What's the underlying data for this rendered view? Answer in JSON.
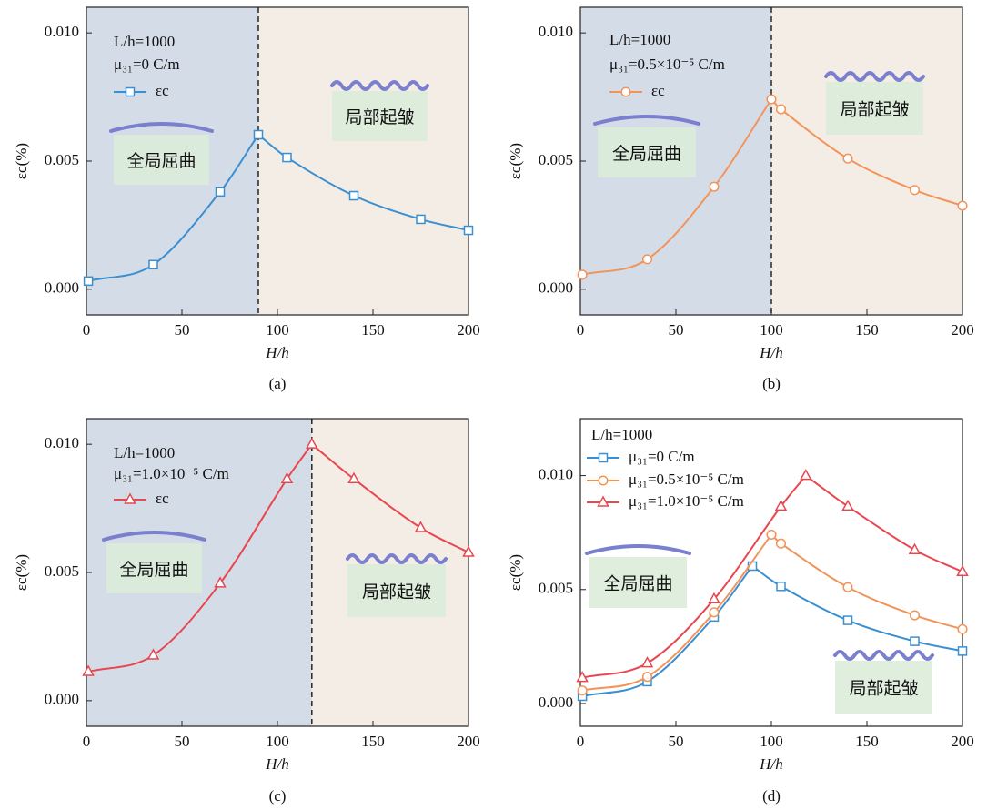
{
  "chart_data": [
    {
      "type": "line",
      "caption": "(a)",
      "xlabel": "H/h",
      "ylabel": "εc(%)",
      "xlim": [
        0,
        200
      ],
      "xticks": [
        0,
        50,
        100,
        150,
        200
      ],
      "ylim": [
        -0.001,
        0.011
      ],
      "yticks": [
        {
          "value": 0,
          "label": "0.000"
        },
        {
          "value": 0.005,
          "label": "0.005"
        },
        {
          "value": 0.01,
          "label": "0.010"
        }
      ],
      "annotations": [
        "L/h=1000",
        "μ₃₁=0 C/m"
      ],
      "transition_x": 90,
      "insets": [
        "全局屈曲",
        "局部起皱"
      ],
      "series": [
        {
          "name": "εc",
          "color": "#3a8fd1",
          "marker": "square",
          "x": [
            1,
            35,
            70,
            90,
            105,
            140,
            175,
            200
          ],
          "values": [
            0.00032,
            0.00096,
            0.0038,
            0.00603,
            0.00514,
            0.00365,
            0.00273,
            0.0023
          ]
        }
      ]
    },
    {
      "type": "line",
      "caption": "(b)",
      "xlabel": "H/h",
      "ylabel": "εc(%)",
      "xlim": [
        0,
        200
      ],
      "xticks": [
        0,
        50,
        100,
        150,
        200
      ],
      "ylim": [
        -0.001,
        0.011
      ],
      "yticks": [
        {
          "value": 0,
          "label": "0.000"
        },
        {
          "value": 0.005,
          "label": "0.005"
        },
        {
          "value": 0.01,
          "label": "0.010"
        }
      ],
      "annotations": [
        "L/h=1000",
        "μ₃₁=0.5×10⁻⁵ C/m"
      ],
      "transition_x": 100,
      "insets": [
        "全局屈曲",
        "局部起皱"
      ],
      "series": [
        {
          "name": "εc",
          "color": "#f2945a",
          "marker": "circle",
          "x": [
            1,
            35,
            70,
            100,
            105,
            140,
            175,
            200
          ],
          "values": [
            0.00057,
            0.00117,
            0.004,
            0.00741,
            0.00702,
            0.0051,
            0.00387,
            0.00326
          ]
        }
      ]
    },
    {
      "type": "line",
      "caption": "(c)",
      "xlabel": "H/h",
      "ylabel": "εc(%)",
      "xlim": [
        0,
        200
      ],
      "xticks": [
        0,
        50,
        100,
        150,
        200
      ],
      "ylim": [
        -0.001,
        0.011
      ],
      "yticks": [
        {
          "value": 0,
          "label": "0.000"
        },
        {
          "value": 0.005,
          "label": "0.005"
        },
        {
          "value": 0.01,
          "label": "0.010"
        }
      ],
      "annotations": [
        "L/h=1000",
        "μ₃₁=1.0×10⁻⁵ C/m"
      ],
      "transition_x": 118,
      "insets": [
        "全局屈曲",
        "局部起皱"
      ],
      "series": [
        {
          "name": "εc",
          "color": "#e8474f",
          "marker": "triangle",
          "x": [
            1,
            35,
            70,
            105,
            118,
            140,
            175,
            200
          ],
          "values": [
            0.00113,
            0.00177,
            0.00458,
            0.00865,
            0.01,
            0.00865,
            0.00674,
            0.00578
          ]
        }
      ]
    },
    {
      "type": "line",
      "caption": "(d)",
      "xlabel": "H/h",
      "ylabel": "εc(%)",
      "xlim": [
        0,
        200
      ],
      "xticks": [
        0,
        50,
        100,
        150,
        200
      ],
      "ylim": [
        -0.001,
        0.0125
      ],
      "yticks": [
        {
          "value": 0,
          "label": "0.000"
        },
        {
          "value": 0.005,
          "label": "0.005"
        },
        {
          "value": 0.01,
          "label": "0.010"
        }
      ],
      "annotations": [
        "L/h=1000"
      ],
      "insets": [
        "全局屈曲",
        "局部起皱"
      ],
      "series": [
        {
          "name": "μ₃₁=0 C/m",
          "color": "#3a8fd1",
          "marker": "square",
          "x": [
            1,
            35,
            70,
            90,
            105,
            140,
            175,
            200
          ],
          "values": [
            0.00032,
            0.00096,
            0.0038,
            0.00603,
            0.00514,
            0.00365,
            0.00273,
            0.0023
          ]
        },
        {
          "name": "μ₃₁=0.5×10⁻⁵ C/m",
          "color": "#f2945a",
          "marker": "circle",
          "x": [
            1,
            35,
            70,
            100,
            105,
            140,
            175,
            200
          ],
          "values": [
            0.00057,
            0.00117,
            0.004,
            0.00741,
            0.00702,
            0.0051,
            0.00387,
            0.00326
          ]
        },
        {
          "name": "μ₃₁=1.0×10⁻⁵ C/m",
          "color": "#e8474f",
          "marker": "triangle",
          "x": [
            1,
            35,
            70,
            105,
            118,
            140,
            175,
            200
          ],
          "values": [
            0.00113,
            0.00177,
            0.00458,
            0.00865,
            0.01,
            0.00865,
            0.00674,
            0.00578
          ]
        }
      ]
    }
  ]
}
